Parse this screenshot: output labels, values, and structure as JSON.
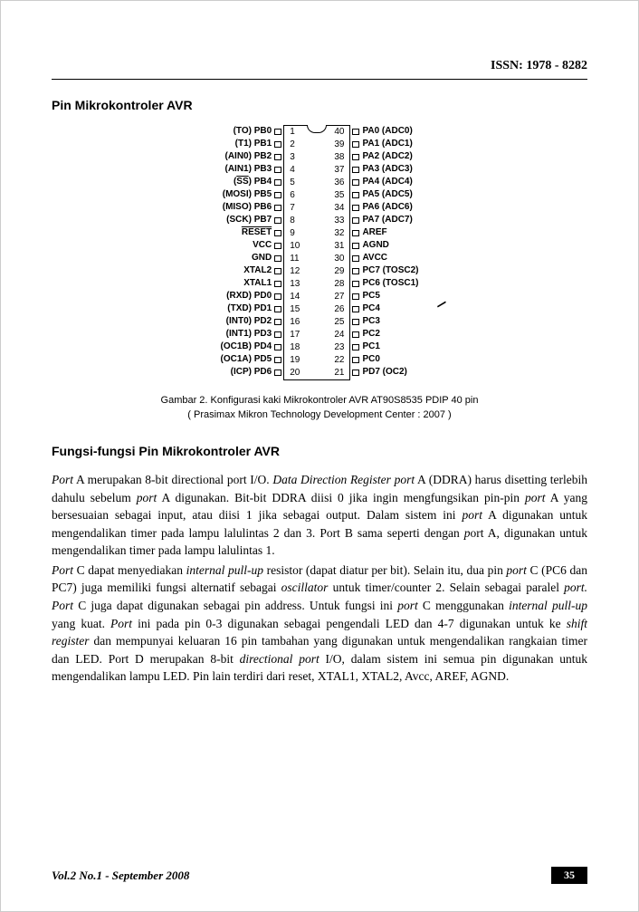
{
  "header": {
    "issn": "ISSN: 1978 - 8282"
  },
  "section1_title": "Pin Mikrokontroler AVR",
  "chip": {
    "left_pins": [
      {
        "n": 1,
        "label": "(TO) PB0"
      },
      {
        "n": 2,
        "label": "(T1) PB1"
      },
      {
        "n": 3,
        "label": "(AIN0) PB2"
      },
      {
        "n": 4,
        "label": "(AIN1) PB3",
        "underline_part": "AIN1"
      },
      {
        "n": 5,
        "label": "(SS) PB4",
        "overline": true
      },
      {
        "n": 6,
        "label": "(MOSI) PB5"
      },
      {
        "n": 7,
        "label": "(MISO) PB6"
      },
      {
        "n": 8,
        "label": "(SCK) PB7"
      },
      {
        "n": 9,
        "label": "RESET",
        "overline": true
      },
      {
        "n": 10,
        "label": "VCC"
      },
      {
        "n": 11,
        "label": "GND"
      },
      {
        "n": 12,
        "label": "XTAL2"
      },
      {
        "n": 13,
        "label": "XTAL1"
      },
      {
        "n": 14,
        "label": "(RXD) PD0"
      },
      {
        "n": 15,
        "label": "(TXD) PD1"
      },
      {
        "n": 16,
        "label": "(INT0) PD2"
      },
      {
        "n": 17,
        "label": "(INT1) PD3"
      },
      {
        "n": 18,
        "label": "(OC1B) PD4"
      },
      {
        "n": 19,
        "label": "(OC1A) PD5"
      },
      {
        "n": 20,
        "label": "(ICP) PD6"
      }
    ],
    "right_pins": [
      {
        "n": 40,
        "label": "PA0 (ADC0)"
      },
      {
        "n": 39,
        "label": "PA1 (ADC1)"
      },
      {
        "n": 38,
        "label": "PA2 (ADC2)"
      },
      {
        "n": 37,
        "label": "PA3 (ADC3)"
      },
      {
        "n": 36,
        "label": "PA4 (ADC4)"
      },
      {
        "n": 35,
        "label": "PA5 (ADC5)"
      },
      {
        "n": 34,
        "label": "PA6 (ADC6)"
      },
      {
        "n": 33,
        "label": "PA7 (ADC7)"
      },
      {
        "n": 32,
        "label": "AREF"
      },
      {
        "n": 31,
        "label": "AGND"
      },
      {
        "n": 30,
        "label": "AVCC"
      },
      {
        "n": 29,
        "label": "PC7 (TOSC2)"
      },
      {
        "n": 28,
        "label": "PC6 (TOSC1)"
      },
      {
        "n": 27,
        "label": "PC5"
      },
      {
        "n": 26,
        "label": "PC4"
      },
      {
        "n": 25,
        "label": "PC3"
      },
      {
        "n": 24,
        "label": "PC2"
      },
      {
        "n": 23,
        "label": "PC1"
      },
      {
        "n": 22,
        "label": "PC0"
      },
      {
        "n": 21,
        "label": "PD7 (OC2)"
      }
    ]
  },
  "caption": "Gambar 2. Konfigurasi kaki Mikrokontroler AVR AT90S8535 PDIP 40 pin",
  "source": "( Prasimax Mikron Technology Development Center : 2007 )",
  "section2_title": "Fungsi-fungsi Pin Mikrokontroler AVR",
  "para1_parts": [
    {
      "t": "Port",
      "it": true
    },
    {
      "t": " A merupakan 8-bit directional port I/O. "
    },
    {
      "t": "Data Direction Register port",
      "it": true
    },
    {
      "t": " A (DDRA) harus disetting terlebih dahulu sebelum "
    },
    {
      "t": "port",
      "it": true
    },
    {
      "t": " A digunakan. Bit-bit DDRA diisi 0 jika ingin mengfungsikan pin-pin "
    },
    {
      "t": "port",
      "it": true
    },
    {
      "t": " A yang bersesuaian sebagai input, atau diisi 1 jika sebagai output. Dalam sistem ini "
    },
    {
      "t": "port",
      "it": true
    },
    {
      "t": " A digunakan untuk mengendalikan timer pada lampu lalulintas 2 dan 3. Port B sama seperti dengan "
    },
    {
      "t": "p",
      "it": true
    },
    {
      "t": "ort A, digunakan untuk mengendalikan timer pada lampu lalulintas 1."
    }
  ],
  "para2_parts": [
    {
      "t": "Port",
      "it": true
    },
    {
      "t": " C dapat menyediakan "
    },
    {
      "t": "internal pull-up",
      "it": true
    },
    {
      "t": " resistor (dapat diatur per bit). Selain itu, dua pin "
    },
    {
      "t": "port",
      "it": true
    },
    {
      "t": " C (PC6 dan PC7) juga memiliki fungsi alternatif sebagai "
    },
    {
      "t": "oscillator",
      "it": true
    },
    {
      "t": " untuk timer/counter 2. Selain sebagai paralel "
    },
    {
      "t": "port. Port",
      "it": true
    },
    {
      "t": " C juga dapat digunakan sebagai pin address. Untuk fungsi ini "
    },
    {
      "t": "port",
      "it": true
    },
    {
      "t": " C menggunakan "
    },
    {
      "t": "internal pull-up",
      "it": true
    },
    {
      "t": " yang kuat. "
    },
    {
      "t": "Port",
      "it": true
    },
    {
      "t": " ini pada pin 0-3 digunakan sebagai pengendali LED dan 4-7 digunakan untuk ke "
    },
    {
      "t": "shift register",
      "it": true
    },
    {
      "t": " dan mempunyai keluaran 16 pin tambahan yang digunakan untuk mengendalikan rangkaian timer dan LED. Port D merupakan 8-bit "
    },
    {
      "t": "directional port",
      "it": true
    },
    {
      "t": " I/O, dalam sistem ini semua pin digunakan untuk mengendalikan lampu LED. Pin lain terdiri dari reset, XTAL1, XTAL2, Avcc, AREF, AGND."
    }
  ],
  "footer": {
    "vol": "Vol.2 No.1 - September 2008",
    "page": "35"
  }
}
